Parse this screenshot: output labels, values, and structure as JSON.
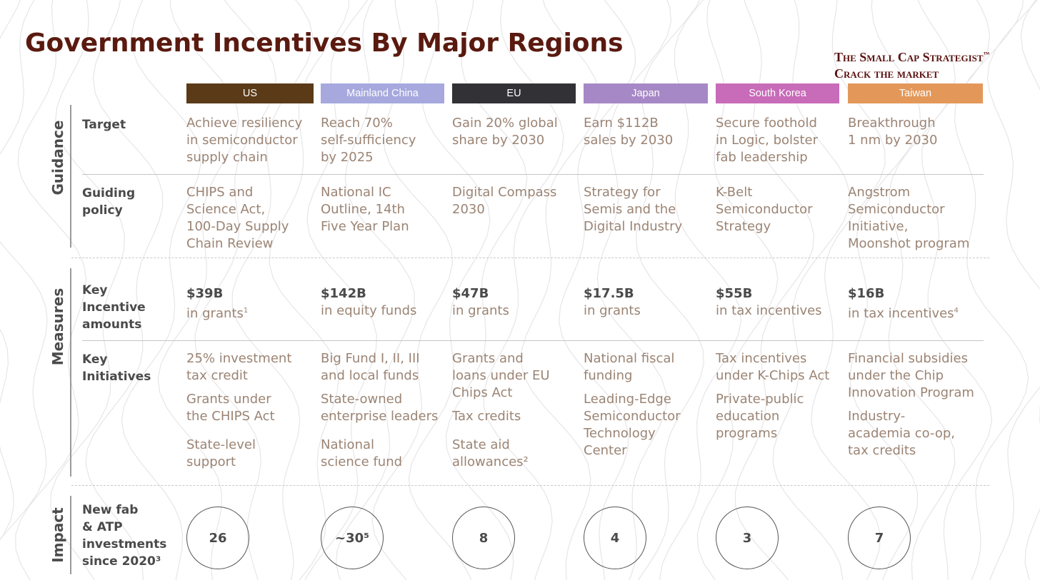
{
  "title": "Government Incentives By Major Regions",
  "brand": {
    "line1": "The Small Cap Strategist",
    "tm": "™",
    "line2": "Crack the market"
  },
  "sections": {
    "guidance": "Guidance",
    "measures": "Measures",
    "impact": "Impact"
  },
  "row_labels": {
    "target": "Target",
    "guiding_policy": [
      "Guiding",
      "policy"
    ],
    "key_incentive": [
      "Key",
      "Incentive",
      "amounts"
    ],
    "key_initiatives": [
      "Key",
      "Initiatives"
    ],
    "impact": [
      "New fab",
      "& ATP",
      "investments",
      "since 2020³"
    ]
  },
  "regions": [
    {
      "name": "US",
      "color": "#5b3a18",
      "target": [
        "Achieve resiliency",
        "in semiconductor",
        "supply chain"
      ],
      "policy": [
        "CHIPS and",
        "Science Act,",
        "100-Day Supply",
        "Chain Review"
      ],
      "amount": "$39B",
      "amount_sub": "in grants",
      "amount_sup": "1",
      "initiatives": [
        [
          "25% investment",
          "tax credit"
        ],
        [
          "Grants under",
          "the CHIPS Act"
        ],
        [
          "State-level",
          "support"
        ]
      ],
      "impact": "26"
    },
    {
      "name": "Mainland China",
      "color": "#a6a8de",
      "target": [
        "Reach 70%",
        "self-sufficiency",
        "by 2025"
      ],
      "policy": [
        "National IC",
        "Outline, 14th",
        "Five Year Plan"
      ],
      "amount": "$142B",
      "amount_sub": "in equity funds",
      "amount_sup": "",
      "initiatives": [
        [
          "Big Fund I, II, III",
          "and local funds"
        ],
        [
          "State-owned",
          "enterprise leaders"
        ],
        [
          "National",
          "science fund"
        ]
      ],
      "impact": "~30⁵"
    },
    {
      "name": "EU",
      "color": "#323236",
      "target": [
        "Gain 20% global",
        "share by 2030"
      ],
      "policy": [
        "Digital Compass",
        "2030"
      ],
      "amount": "$47B",
      "amount_sub": "in grants",
      "amount_sup": "",
      "initiatives": [
        [
          "Grants and",
          "loans under EU",
          "Chips Act"
        ],
        [
          "Tax credits"
        ],
        [
          "State aid",
          "allowances²"
        ]
      ],
      "impact": "8"
    },
    {
      "name": "Japan",
      "color": "#a688c6",
      "target": [
        "Earn $112B",
        "sales by 2030"
      ],
      "policy": [
        "Strategy for",
        "Semis and the",
        "Digital Industry"
      ],
      "amount": "$17.5B",
      "amount_sub": "in grants",
      "amount_sup": "",
      "initiatives": [
        [
          "National fiscal",
          "funding"
        ],
        [
          "Leading-Edge",
          "Semiconductor",
          "Technology",
          "Center"
        ]
      ],
      "impact": "4"
    },
    {
      "name": "South Korea",
      "color": "#c86bb8",
      "target": [
        "Secure foothold",
        "in Logic, bolster",
        "fab leadership"
      ],
      "policy": [
        "K-Belt",
        "Semiconductor",
        "Strategy"
      ],
      "amount": "$55B",
      "amount_sub": "in tax incentives",
      "amount_sup": "",
      "initiatives": [
        [
          "Tax incentives",
          "under K-Chips Act"
        ],
        [
          "Private-public",
          "education",
          "programs"
        ]
      ],
      "impact": "3"
    },
    {
      "name": "Taiwan",
      "color": "#e3985a",
      "target": [
        "Breakthrough",
        "1 nm by 2030"
      ],
      "policy": [
        "Angstrom",
        "Semiconductor",
        "Initiative,",
        "Moonshot program"
      ],
      "amount": "$16B",
      "amount_sub": "in tax incentives",
      "amount_sup": "4",
      "initiatives": [
        [
          "Financial subsidies",
          "under the Chip",
          "Innovation Program"
        ],
        [
          "Industry-",
          "academia co-op,",
          "tax credits"
        ]
      ],
      "impact": "7"
    }
  ]
}
